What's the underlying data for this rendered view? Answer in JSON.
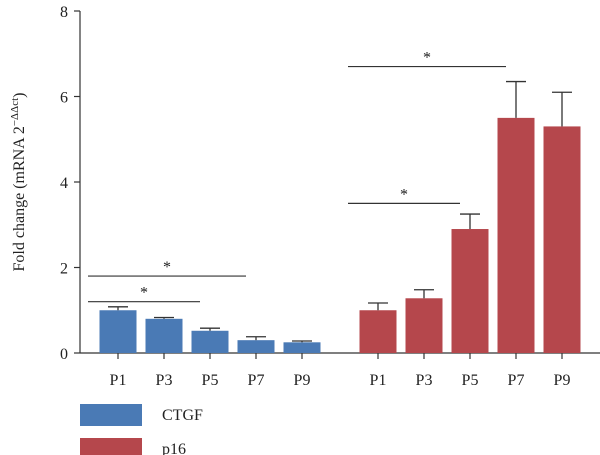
{
  "chart_data": {
    "type": "bar",
    "ylabel": "Fold change (mRNA 2",
    "ylabel_sup": "−ΔΔct",
    "ylabel_close": ")",
    "ylim": [
      0,
      8
    ],
    "yticks": [
      "0",
      "2",
      "4",
      "6",
      "8"
    ],
    "groups": [
      {
        "name": "CTGF",
        "color": "#4a7ab5",
        "categories": [
          "P1",
          "P3",
          "P5",
          "P7",
          "P9"
        ],
        "values": [
          1.0,
          0.8,
          0.52,
          0.3,
          0.25
        ],
        "errors": [
          0.08,
          0.03,
          0.06,
          0.08,
          0.03
        ]
      },
      {
        "name": "p16",
        "color": "#b5474c",
        "categories": [
          "P1",
          "P3",
          "P5",
          "P7",
          "P9"
        ],
        "values": [
          1.0,
          1.28,
          2.9,
          5.5,
          5.3
        ],
        "errors": [
          0.17,
          0.2,
          0.35,
          0.85,
          0.8
        ]
      }
    ],
    "significance": [
      {
        "group": 0,
        "from": 0,
        "to": 2,
        "y": 1.2,
        "label": "*"
      },
      {
        "group": 0,
        "from": 0,
        "to": 3,
        "y": 1.8,
        "label": "*"
      },
      {
        "group": 1,
        "from": 0,
        "to": 2,
        "y": 3.5,
        "label": "*"
      },
      {
        "group": 1,
        "from": 0,
        "to": 3,
        "y": 6.7,
        "label": "*"
      }
    ],
    "legend": {
      "position": "bottom-left",
      "entries": [
        {
          "label": "CTGF",
          "color": "#4a7ab5"
        },
        {
          "label": "p16",
          "color": "#b5474c"
        }
      ]
    },
    "grid": false
  }
}
